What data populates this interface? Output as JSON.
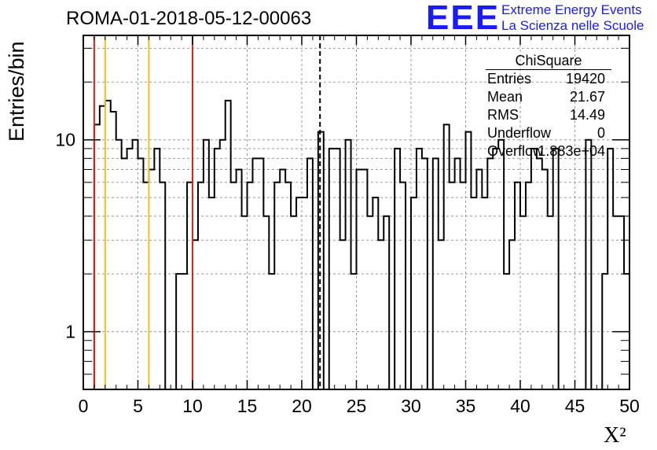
{
  "title": "ROMA-01-2018-05-12-00063",
  "logo": {
    "mark": "EEE",
    "line1": "Extreme Energy Events",
    "line2": "La Scienza nelle Scuole",
    "color": "#1a1aff"
  },
  "stats": {
    "title": "ChiSquare",
    "rows": [
      {
        "key": "Entries",
        "value": "19420"
      },
      {
        "key": "Mean",
        "value": "21.67"
      },
      {
        "key": "RMS",
        "value": "14.49"
      },
      {
        "key": "Underflow",
        "value": "0"
      },
      {
        "key": "Overflow",
        "value": "1.883e+04"
      }
    ]
  },
  "chart_data": {
    "type": "histogram",
    "title": "ROMA-01-2018-05-12-00063",
    "xlabel": "X²",
    "ylabel": "Entries/bin",
    "xlim": [
      0,
      50
    ],
    "ylim": [
      0.5,
      35
    ],
    "yscale": "log",
    "grid": true,
    "bin_width": 0.5,
    "xticks": [
      0,
      5,
      10,
      15,
      20,
      25,
      30,
      35,
      40,
      45,
      50
    ],
    "yticks": [
      {
        "value": 1,
        "label": "1"
      },
      {
        "value": 10,
        "label": "10"
      }
    ],
    "values": [
      0,
      0,
      12,
      15,
      16,
      14,
      10,
      8,
      9,
      10,
      8,
      6,
      7,
      9,
      6,
      0,
      0,
      2,
      2,
      6,
      3,
      6,
      10,
      5,
      9,
      10,
      16,
      6,
      7,
      4,
      6,
      8,
      8,
      4,
      2,
      6,
      7,
      6,
      4,
      5,
      5,
      8,
      0,
      11,
      0,
      9,
      9,
      3,
      10,
      2,
      7,
      7,
      4,
      5,
      3,
      4,
      0,
      9,
      6,
      0,
      5,
      9,
      8,
      0,
      8,
      3,
      12,
      6,
      8,
      6,
      11,
      5,
      7,
      5,
      8,
      9,
      10,
      2,
      3,
      6,
      4,
      6,
      9,
      8,
      7,
      4,
      9,
      0,
      0,
      0,
      0,
      0,
      10,
      0,
      0,
      2,
      9,
      4,
      4,
      2
    ],
    "vlines": [
      {
        "x": 1,
        "color": "#e0201a",
        "style": "solid"
      },
      {
        "x": 2,
        "color": "#f0c020",
        "style": "solid"
      },
      {
        "x": 6,
        "color": "#f0c020",
        "style": "solid"
      },
      {
        "x": 10,
        "color": "#e0201a",
        "style": "solid"
      },
      {
        "x": 21.67,
        "color": "#000000",
        "style": "dashed"
      }
    ]
  }
}
